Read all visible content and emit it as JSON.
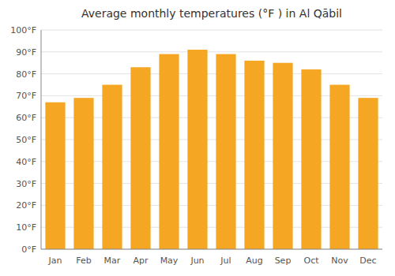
{
  "chart_data": {
    "type": "bar",
    "title": "Average monthly temperatures (°F ) in Al Qābil",
    "categories": [
      "Jan",
      "Feb",
      "Mar",
      "Apr",
      "May",
      "Jun",
      "Jul",
      "Aug",
      "Sep",
      "Oct",
      "Nov",
      "Dec"
    ],
    "values": [
      67,
      69,
      75,
      83,
      89,
      91,
      89,
      86,
      85,
      82,
      75,
      69
    ],
    "color": "#F5A623",
    "ylim": [
      0,
      100
    ],
    "yticks": [
      {
        "value": 0,
        "label": "0°F"
      },
      {
        "value": 10,
        "label": "10°F"
      },
      {
        "value": 20,
        "label": "20°F"
      },
      {
        "value": 30,
        "label": "30°F"
      },
      {
        "value": 40,
        "label": "40°F"
      },
      {
        "value": 50,
        "label": "50°F"
      },
      {
        "value": 60,
        "label": "60°F"
      },
      {
        "value": 70,
        "label": "70°F"
      },
      {
        "value": 80,
        "label": "80°F"
      },
      {
        "value": 90,
        "label": "90°F"
      },
      {
        "value": 100,
        "label": "100°F"
      }
    ],
    "grid": true
  }
}
